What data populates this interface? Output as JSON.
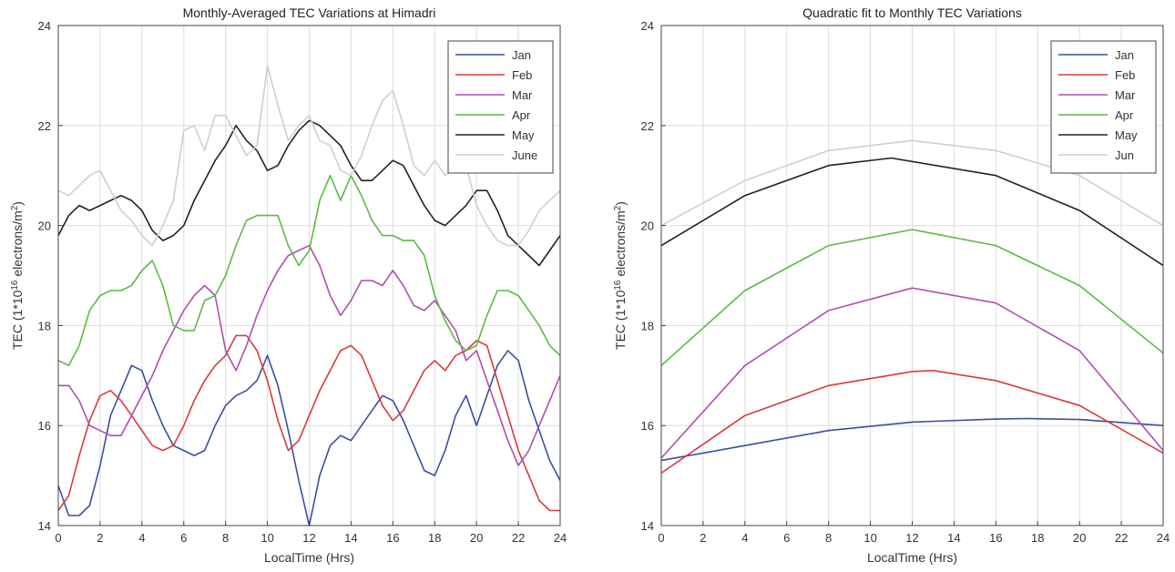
{
  "chart_data": [
    {
      "type": "line",
      "title": "Monthly-Averaged TEC Variations at Himadri",
      "xlabel": "LocalTime (Hrs)",
      "ylabel": "TEC (1*10^16 electrons/m^2)",
      "xlim": [
        0,
        24
      ],
      "ylim": [
        14,
        24
      ],
      "xticks": [
        0,
        2,
        4,
        6,
        8,
        10,
        12,
        14,
        16,
        18,
        20,
        22,
        24
      ],
      "yticks": [
        14,
        16,
        18,
        20,
        22,
        24
      ],
      "grid": true,
      "legend_position": "top-right",
      "series": [
        {
          "name": "Jan",
          "color": "#3c4fa0",
          "x": [
            0,
            0.5,
            1,
            1.5,
            2,
            2.5,
            3,
            3.5,
            4,
            4.5,
            5,
            5.5,
            6,
            6.5,
            7,
            7.5,
            8,
            8.5,
            9,
            9.5,
            10,
            10.5,
            11,
            11.5,
            12,
            12.5,
            13,
            13.5,
            14,
            14.5,
            15,
            15.5,
            16,
            16.5,
            17,
            17.5,
            18,
            18.5,
            19,
            19.5,
            20,
            20.5,
            21,
            21.5,
            22,
            22.5,
            23,
            23.5,
            24
          ],
          "y": [
            14.8,
            14.2,
            14.2,
            14.4,
            15.2,
            16.2,
            16.7,
            17.2,
            17.1,
            16.5,
            16.0,
            15.6,
            15.5,
            15.4,
            15.5,
            16.0,
            16.4,
            16.6,
            16.7,
            16.9,
            17.4,
            16.8,
            15.9,
            14.9,
            14.0,
            15.0,
            15.6,
            15.8,
            15.7,
            16.0,
            16.3,
            16.6,
            16.5,
            16.1,
            15.6,
            15.1,
            15.0,
            15.5,
            16.2,
            16.6,
            16.0,
            16.6,
            17.2,
            17.5,
            17.3,
            16.5,
            15.9,
            15.3,
            14.9
          ]
        },
        {
          "name": "Feb",
          "color": "#d93a3a",
          "x": [
            0,
            0.5,
            1,
            1.5,
            2,
            2.5,
            3,
            3.5,
            4,
            4.5,
            5,
            5.5,
            6,
            6.5,
            7,
            7.5,
            8,
            8.5,
            9,
            9.5,
            10,
            10.5,
            11,
            11.5,
            12,
            12.5,
            13,
            13.5,
            14,
            14.5,
            15,
            15.5,
            16,
            16.5,
            17,
            17.5,
            18,
            18.5,
            19,
            19.5,
            20,
            20.5,
            21,
            21.5,
            22,
            22.5,
            23,
            23.5,
            24
          ],
          "y": [
            14.3,
            14.6,
            15.4,
            16.1,
            16.6,
            16.7,
            16.5,
            16.2,
            15.9,
            15.6,
            15.5,
            15.6,
            16.0,
            16.5,
            16.9,
            17.2,
            17.4,
            17.8,
            17.8,
            17.5,
            16.9,
            16.1,
            15.5,
            15.7,
            16.2,
            16.7,
            17.1,
            17.5,
            17.6,
            17.4,
            16.9,
            16.4,
            16.1,
            16.3,
            16.7,
            17.1,
            17.3,
            17.1,
            17.4,
            17.5,
            17.7,
            17.6,
            16.9,
            16.2,
            15.5,
            15.0,
            14.5,
            14.3,
            14.3
          ]
        },
        {
          "name": "Mar",
          "color": "#b04fb0",
          "x": [
            0,
            0.5,
            1,
            1.5,
            2,
            2.5,
            3,
            3.5,
            4,
            4.5,
            5,
            5.5,
            6,
            6.5,
            7,
            7.5,
            8,
            8.5,
            9,
            9.5,
            10,
            10.5,
            11,
            11.5,
            12,
            12.5,
            13,
            13.5,
            14,
            14.5,
            15,
            15.5,
            16,
            16.5,
            17,
            17.5,
            18,
            18.5,
            19,
            19.5,
            20,
            20.5,
            21,
            21.5,
            22,
            22.5,
            23,
            23.5,
            24
          ],
          "y": [
            16.8,
            16.8,
            16.5,
            16.0,
            15.9,
            15.8,
            15.8,
            16.2,
            16.6,
            17.0,
            17.5,
            17.9,
            18.3,
            18.6,
            18.8,
            18.6,
            17.5,
            17.1,
            17.6,
            18.2,
            18.7,
            19.1,
            19.4,
            19.5,
            19.6,
            19.2,
            18.6,
            18.2,
            18.5,
            18.9,
            18.9,
            18.8,
            19.1,
            18.8,
            18.4,
            18.3,
            18.5,
            18.2,
            17.9,
            17.3,
            17.5,
            16.9,
            16.3,
            15.7,
            15.2,
            15.5,
            16.0,
            16.5,
            17.0
          ]
        },
        {
          "name": "Apr",
          "color": "#5bbb46",
          "x": [
            0,
            0.5,
            1,
            1.5,
            2,
            2.5,
            3,
            3.5,
            4,
            4.5,
            5,
            5.5,
            6,
            6.5,
            7,
            7.5,
            8,
            8.5,
            9,
            9.5,
            10,
            10.5,
            11,
            11.5,
            12,
            12.5,
            13,
            13.5,
            14,
            14.5,
            15,
            15.5,
            16,
            16.5,
            17,
            17.5,
            18,
            18.5,
            19,
            19.5,
            20,
            20.5,
            21,
            21.5,
            22,
            22.5,
            23,
            23.5,
            24
          ],
          "y": [
            17.3,
            17.2,
            17.6,
            18.3,
            18.6,
            18.7,
            18.7,
            18.8,
            19.1,
            19.3,
            18.8,
            18.0,
            17.9,
            17.9,
            18.5,
            18.6,
            19.0,
            19.6,
            20.1,
            20.2,
            20.2,
            20.2,
            19.6,
            19.2,
            19.5,
            20.5,
            21.0,
            20.5,
            21.0,
            20.6,
            20.1,
            19.8,
            19.8,
            19.7,
            19.7,
            19.4,
            18.6,
            18.1,
            17.7,
            17.5,
            17.6,
            18.2,
            18.7,
            18.7,
            18.6,
            18.3,
            18.0,
            17.6,
            17.4
          ]
        },
        {
          "name": "May",
          "color": "#222222",
          "x": [
            0,
            0.5,
            1,
            1.5,
            2,
            2.5,
            3,
            3.5,
            4,
            4.5,
            5,
            5.5,
            6,
            6.5,
            7,
            7.5,
            8,
            8.5,
            9,
            9.5,
            10,
            10.5,
            11,
            11.5,
            12,
            12.5,
            13,
            13.5,
            14,
            14.5,
            15,
            15.5,
            16,
            16.5,
            17,
            17.5,
            18,
            18.5,
            19,
            19.5,
            20,
            20.5,
            21,
            21.5,
            22,
            22.5,
            23,
            23.5,
            24
          ],
          "y": [
            19.8,
            20.2,
            20.4,
            20.3,
            20.4,
            20.5,
            20.6,
            20.5,
            20.3,
            19.9,
            19.7,
            19.8,
            20.0,
            20.5,
            20.9,
            21.3,
            21.6,
            22.0,
            21.7,
            21.5,
            21.1,
            21.2,
            21.6,
            21.9,
            22.1,
            22.0,
            21.8,
            21.6,
            21.2,
            20.9,
            20.9,
            21.1,
            21.3,
            21.2,
            20.8,
            20.4,
            20.1,
            20.0,
            20.2,
            20.4,
            20.7,
            20.7,
            20.3,
            19.8,
            19.6,
            19.4,
            19.2,
            19.5,
            19.8
          ]
        },
        {
          "name": "June",
          "color": "#cfcfcf",
          "x": [
            0,
            0.5,
            1,
            1.5,
            2,
            2.5,
            3,
            3.5,
            4,
            4.5,
            5,
            5.5,
            6,
            6.5,
            7,
            7.5,
            8,
            8.5,
            9,
            9.5,
            10,
            10.5,
            11,
            11.5,
            12,
            12.5,
            13,
            13.5,
            14,
            14.5,
            15,
            15.5,
            16,
            16.5,
            17,
            17.5,
            18,
            18.5,
            19,
            19.5,
            20,
            20.5,
            21,
            21.5,
            22,
            22.5,
            23,
            23.5,
            24
          ],
          "y": [
            20.7,
            20.6,
            20.8,
            21.0,
            21.1,
            20.7,
            20.3,
            20.1,
            19.8,
            19.6,
            20.0,
            20.5,
            21.9,
            22.0,
            21.5,
            22.2,
            22.2,
            21.8,
            21.4,
            21.6,
            23.2,
            22.4,
            21.7,
            22.0,
            22.2,
            21.7,
            21.6,
            21.1,
            21.0,
            21.4,
            22.0,
            22.5,
            22.7,
            22.0,
            21.2,
            21.0,
            21.3,
            21.0,
            21.2,
            21.2,
            20.4,
            20.0,
            19.7,
            19.6,
            19.6,
            19.9,
            20.3,
            20.5,
            20.7
          ]
        }
      ]
    },
    {
      "type": "line",
      "title": "Quadratic fit to Monthly TEC Variations",
      "xlabel": "LocalTime (Hrs)",
      "ylabel": "TEC (1*10^16 electrons/m^2)",
      "xlim": [
        0,
        24
      ],
      "ylim": [
        14,
        24
      ],
      "xticks": [
        0,
        2,
        4,
        6,
        8,
        10,
        12,
        14,
        16,
        18,
        20,
        22,
        24
      ],
      "yticks": [
        14,
        16,
        18,
        20,
        22,
        24
      ],
      "grid": true,
      "legend_position": "top-right",
      "series": [
        {
          "name": "Jan",
          "color": "#3c4fa0",
          "x": [
            0,
            4,
            8,
            12,
            16,
            17.5,
            20,
            24
          ],
          "y": [
            15.3,
            15.6,
            15.9,
            16.07,
            16.13,
            16.14,
            16.12,
            16.0
          ]
        },
        {
          "name": "Feb",
          "color": "#d93a3a",
          "x": [
            0,
            4,
            8,
            12,
            13,
            16,
            20,
            24
          ],
          "y": [
            15.05,
            16.2,
            16.8,
            17.08,
            17.1,
            16.9,
            16.4,
            15.45
          ]
        },
        {
          "name": "Mar",
          "color": "#b04fb0",
          "x": [
            0,
            4,
            8,
            12,
            16,
            20,
            24
          ],
          "y": [
            15.35,
            17.2,
            18.3,
            18.75,
            18.45,
            17.5,
            15.5
          ]
        },
        {
          "name": "Apr",
          "color": "#5bbb46",
          "x": [
            0,
            4,
            8,
            12,
            16,
            20,
            24
          ],
          "y": [
            17.2,
            18.7,
            19.6,
            19.92,
            19.6,
            18.8,
            17.45
          ]
        },
        {
          "name": "May",
          "color": "#222222",
          "x": [
            0,
            4,
            8,
            11,
            16,
            20,
            24
          ],
          "y": [
            19.6,
            20.6,
            21.2,
            21.35,
            21.0,
            20.3,
            19.2
          ]
        },
        {
          "name": "Jun",
          "color": "#cfcfcf",
          "x": [
            0,
            4,
            8,
            12,
            16,
            20,
            24
          ],
          "y": [
            20.0,
            20.9,
            21.5,
            21.7,
            21.5,
            21.0,
            20.0
          ]
        }
      ]
    }
  ]
}
